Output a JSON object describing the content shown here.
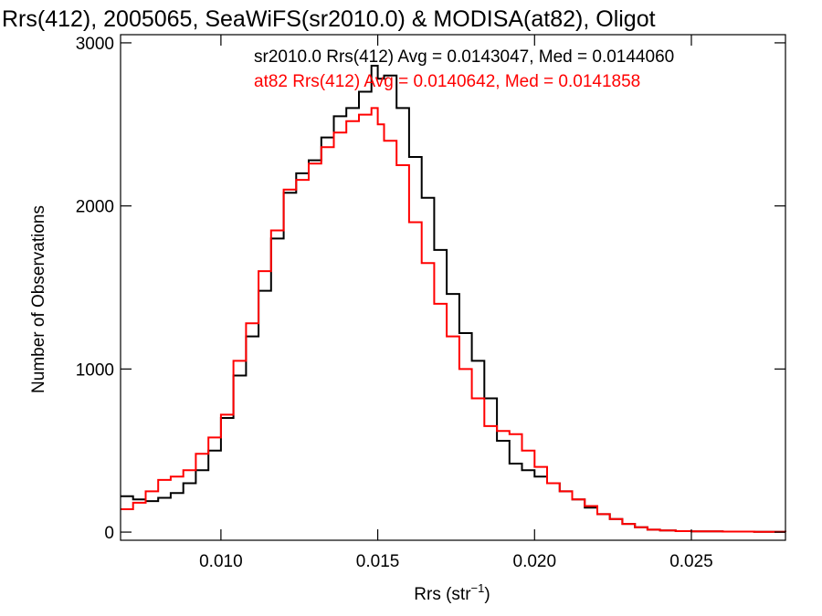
{
  "chart_data": {
    "type": "line",
    "title": "Rrs(412), 2005065, SeaWiFS(sr2010.0) & MODISA(at82), Oligot",
    "xlabel": "Rrs (str",
    "xlabel_sup": "−1",
    "xlabel_end": ")",
    "ylabel": "Number of Observations",
    "xlim": [
      0.0068,
      0.028
    ],
    "ylim": [
      -50,
      3050
    ],
    "xticks": [
      {
        "value": 0.01,
        "label": "0.010"
      },
      {
        "value": 0.015,
        "label": "0.015"
      },
      {
        "value": 0.02,
        "label": "0.020"
      },
      {
        "value": 0.025,
        "label": "0.025"
      }
    ],
    "yticks": [
      {
        "value": 0,
        "label": "0"
      },
      {
        "value": 1000,
        "label": "1000"
      },
      {
        "value": 2000,
        "label": "2000"
      },
      {
        "value": 3000,
        "label": "3000"
      }
    ],
    "legend": [
      {
        "text": "sr2010.0 Rrs(412) Avg = 0.0143047, Med = 0.0144060",
        "color": "#000000"
      },
      {
        "text": "at82 Rrs(412) Avg = 0.0140642, Med = 0.0141858",
        "color": "#ff0000"
      }
    ],
    "series": [
      {
        "color": "#000000",
        "x": [
          0.0068,
          0.0072,
          0.0076,
          0.008,
          0.0084,
          0.0088,
          0.0092,
          0.0096,
          0.01,
          0.0104,
          0.0108,
          0.0112,
          0.0116,
          0.012,
          0.0124,
          0.0128,
          0.0132,
          0.0136,
          0.014,
          0.0144,
          0.0148,
          0.015,
          0.0152,
          0.0156,
          0.016,
          0.0164,
          0.0168,
          0.0172,
          0.0176,
          0.018,
          0.0184,
          0.0188,
          0.0192,
          0.0196,
          0.02,
          0.0204,
          0.0208,
          0.0212,
          0.0216,
          0.022,
          0.0224,
          0.0228,
          0.0232,
          0.0236,
          0.024,
          0.0245,
          0.025,
          0.026,
          0.027,
          0.028
        ],
        "y": [
          220,
          200,
          190,
          210,
          240,
          300,
          380,
          500,
          700,
          960,
          1200,
          1480,
          1800,
          2080,
          2200,
          2280,
          2420,
          2550,
          2600,
          2700,
          2860,
          2780,
          2800,
          2600,
          2300,
          2050,
          1730,
          1460,
          1220,
          1050,
          820,
          560,
          420,
          380,
          340,
          300,
          250,
          200,
          150,
          110,
          80,
          50,
          30,
          15,
          10,
          6,
          4,
          3,
          2,
          1
        ]
      },
      {
        "color": "#ff0000",
        "x": [
          0.0068,
          0.0072,
          0.0076,
          0.008,
          0.0084,
          0.0088,
          0.0092,
          0.0096,
          0.01,
          0.0104,
          0.0108,
          0.0112,
          0.0116,
          0.012,
          0.0124,
          0.0128,
          0.0132,
          0.0136,
          0.014,
          0.0144,
          0.0148,
          0.015,
          0.0152,
          0.0156,
          0.016,
          0.0164,
          0.0168,
          0.0172,
          0.0176,
          0.018,
          0.0184,
          0.0188,
          0.0192,
          0.0196,
          0.02,
          0.0204,
          0.0208,
          0.0212,
          0.0216,
          0.022,
          0.0224,
          0.0228,
          0.0232,
          0.0236,
          0.024,
          0.0245,
          0.025,
          0.026,
          0.027,
          0.028
        ],
        "y": [
          140,
          180,
          250,
          320,
          340,
          380,
          480,
          580,
          720,
          1050,
          1280,
          1600,
          1850,
          2100,
          2160,
          2260,
          2360,
          2450,
          2520,
          2560,
          2600,
          2500,
          2400,
          2250,
          1900,
          1650,
          1400,
          1200,
          1000,
          820,
          650,
          620,
          600,
          500,
          400,
          300,
          250,
          200,
          160,
          110,
          80,
          50,
          30,
          15,
          10,
          6,
          4,
          3,
          2,
          1
        ]
      }
    ]
  }
}
